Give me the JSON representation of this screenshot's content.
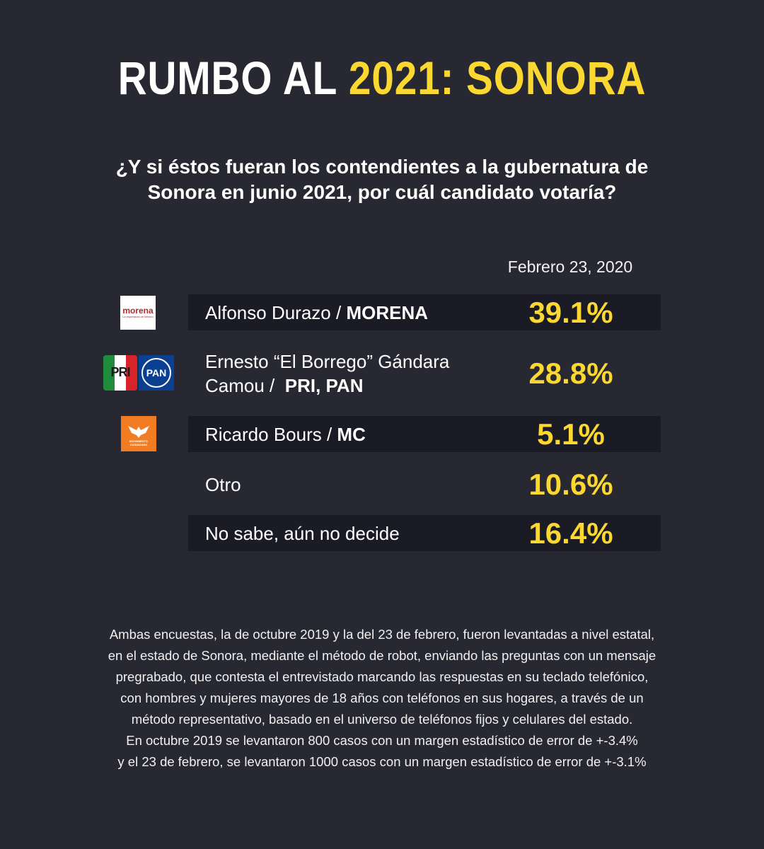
{
  "title": {
    "part1": "RUMBO AL ",
    "part2": "2021: SONORA"
  },
  "question": "¿Y si éstos fueran los contendientes a la gubernatura de Sonora en junio 2021, por cuál candidato votaría?",
  "date": "Febrero 23, 2020",
  "colors": {
    "background": "#272831",
    "band": "#1a1b24",
    "accent": "#fbd731",
    "text": "#ffffff"
  },
  "logos": {
    "morena": {
      "icon": "morena-logo",
      "word": "morena",
      "tag": "La esperanza de México"
    },
    "pri": {
      "icon": "pri-logo",
      "word": "PRI"
    },
    "pan": {
      "icon": "pan-logo",
      "word": "PAN"
    },
    "mc": {
      "icon": "movimiento-ciudadano-logo",
      "tag": "MOVIMIENTO CIUDADANO"
    }
  },
  "chart_data": {
    "type": "table",
    "title": "RUMBO AL 2021: SONORA",
    "column": "Febrero 23, 2020",
    "rows": [
      {
        "name": "Alfonso Durazo / ",
        "party": "MORENA",
        "value": 39.1,
        "label": "39.1%"
      },
      {
        "name": "Ernesto “El Borrego” Gándara",
        "name2": "Camou / ",
        "party": "PRI, PAN",
        "value": 28.8,
        "label": "28.8%"
      },
      {
        "name": "Ricardo Bours / ",
        "party": "MC",
        "value": 5.1,
        "label": "5.1%"
      },
      {
        "name": "Otro",
        "party": "",
        "value": 10.6,
        "label": "10.6%"
      },
      {
        "name": "No sabe, aún no decide",
        "party": "",
        "value": 16.4,
        "label": "16.4%"
      }
    ]
  },
  "footnote": [
    "Ambas encuestas, la de octubre 2019 y la del 23 de febrero, fueron levantadas a nivel estatal,",
    "en el estado de Sonora, mediante el método de robot, enviando las preguntas con un mensaje",
    "pregrabado, que contesta el entrevistado marcando las respuestas en su teclado telefónico,",
    "con hombres y mujeres mayores de 18 años con teléfonos en sus hogares, a través de un",
    "método representativo, basado en el universo de teléfonos fijos y celulares del estado.",
    "En octubre 2019 se levantaron 800 casos con un margen estadístico de error de +-3.4%",
    "y el 23 de febrero, se levantaron 1000 casos con un margen estadístico de error de +-3.1%"
  ]
}
